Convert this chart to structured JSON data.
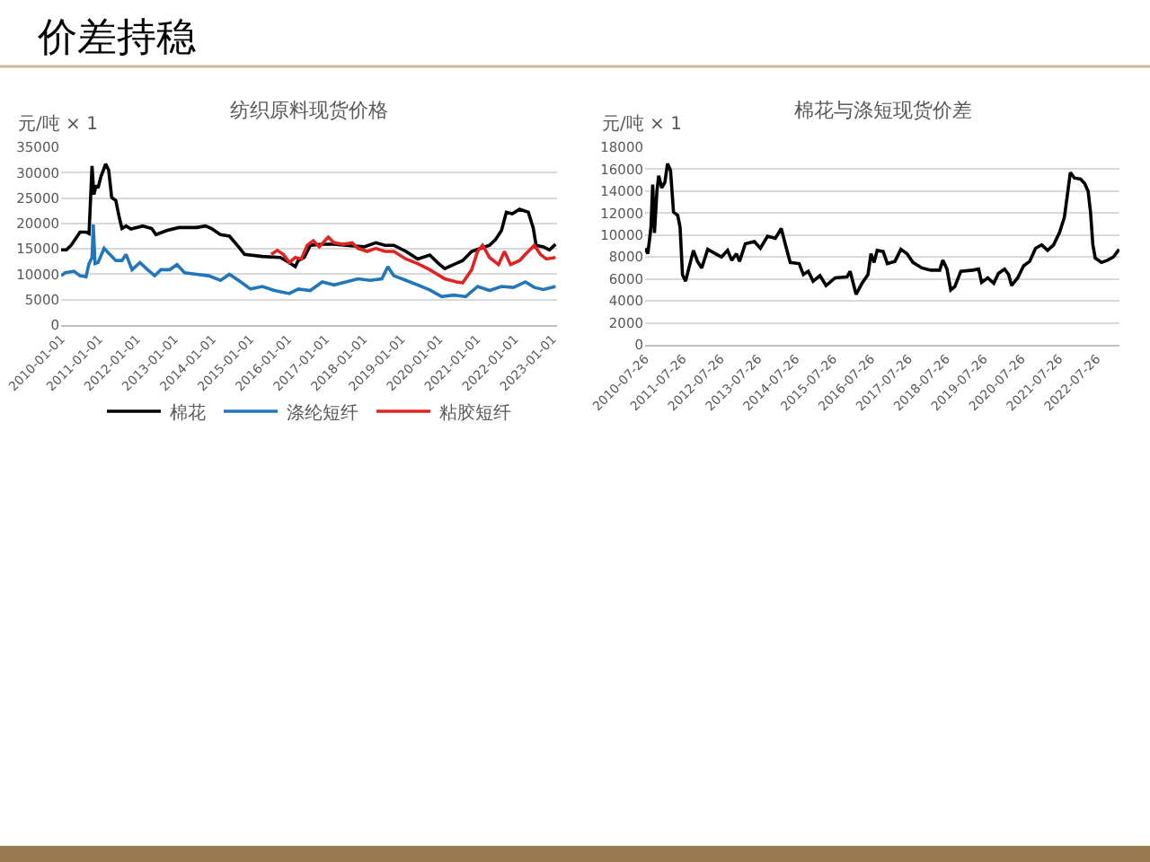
{
  "chart_data": [
    {
      "type": "line",
      "title": "纺织原料现货价格",
      "ylabel": "元/吨 × 1",
      "annotations": [
        "价差持稳"
      ],
      "xlim": [
        "2010-01-01",
        "2023-02-15"
      ],
      "xticks": [
        "2010-01-01",
        "2011-01-01",
        "2012-01-01",
        "2013-01-01",
        "2014-01-01",
        "2015-01-01",
        "2016-01-01",
        "2017-01-01",
        "2018-01-01",
        "2019-01-01",
        "2020-01-01",
        "2021-01-01",
        "2022-01-01",
        "2023-01-01"
      ],
      "ylim": [
        0,
        35000
      ],
      "yticks": [
        0,
        5000,
        10000,
        15000,
        20000,
        25000,
        30000,
        35000
      ],
      "grid": "y",
      "legend": "bottom",
      "series": [
        {
          "name": "棉花",
          "color": "#000000",
          "x": [
            "2010-01-01",
            "2010-02-22",
            "2010-04-08",
            "2010-07-03",
            "2010-08-30",
            "2010-09-28",
            "2010-10-27",
            "2010-11-14",
            "2010-12-07",
            "2010-12-24",
            "2011-01-22",
            "2011-03-08",
            "2011-04-06",
            "2011-05-05",
            "2011-06-14",
            "2011-07-13",
            "2011-08-12",
            "2011-09-21",
            "2011-11-07",
            "2012-03-01",
            "2012-05-26",
            "2012-07-06",
            "2012-10-18",
            "2013-02-12",
            "2013-08-03",
            "2013-10-28",
            "2013-12-25",
            "2014-03-21",
            "2014-06-16",
            "2014-09-12",
            "2014-11-09",
            "2015-04-29",
            "2015-10-21",
            "2016-01-16",
            "2016-03-13",
            "2016-04-11",
            "2016-06-08",
            "2016-08-05",
            "2016-11-29",
            "2017-03-23",
            "2017-07-16",
            "2018-01-07",
            "2018-05-01",
            "2018-07-27",
            "2018-10-22",
            "2019-02-16",
            "2019-06-10",
            "2019-10-04",
            "2019-12-29",
            "2020-02-26",
            "2020-05-22",
            "2020-08-17",
            "2020-11-12",
            "2021-02-08",
            "2021-05-04",
            "2021-06-30",
            "2021-08-27",
            "2021-10-13",
            "2021-12-10",
            "2022-02-18",
            "2022-05-14",
            "2022-06-29",
            "2022-07-28",
            "2022-10-06",
            "2022-12-03",
            "2023-02-01"
          ],
          "values": [
            14800,
            14800,
            15700,
            18300,
            18300,
            18000,
            31300,
            25700,
            27500,
            27000,
            29300,
            31700,
            30500,
            25100,
            24500,
            21600,
            19000,
            19500,
            18900,
            19500,
            19000,
            17800,
            18600,
            19200,
            19200,
            19500,
            19000,
            17800,
            17500,
            15400,
            13900,
            13500,
            13300,
            12300,
            11500,
            12700,
            13300,
            15700,
            15900,
            15900,
            15700,
            15400,
            16200,
            15700,
            15700,
            14500,
            13000,
            13800,
            12100,
            11100,
            11900,
            12700,
            14500,
            15100,
            15700,
            16800,
            18600,
            22200,
            21900,
            22800,
            22200,
            19200,
            15700,
            15400,
            14800,
            15900
          ]
        },
        {
          "name": "涤纶短纤",
          "color": "#2277bb",
          "x": [
            "2010-01-01",
            "2010-02-10",
            "2010-05-06",
            "2010-07-03",
            "2010-08-30",
            "2010-09-28",
            "2010-10-27",
            "2010-11-08",
            "2010-11-25",
            "2010-12-24",
            "2011-02-21",
            "2011-04-17",
            "2011-06-14",
            "2011-08-12",
            "2011-09-21",
            "2011-11-18",
            "2012-02-02",
            "2012-04-16",
            "2012-06-25",
            "2012-08-22",
            "2012-11-17",
            "2013-01-25",
            "2013-04-09",
            "2013-08-03",
            "2013-11-27",
            "2014-03-21",
            "2014-06-16",
            "2014-09-12",
            "2015-01-06",
            "2015-04-29",
            "2015-08-24",
            "2016-01-16",
            "2016-04-11",
            "2016-08-05",
            "2016-11-29",
            "2017-03-23",
            "2017-07-16",
            "2017-11-10",
            "2018-03-05",
            "2018-06-28",
            "2018-08-25",
            "2018-10-22",
            "2019-02-16",
            "2019-06-10",
            "2019-10-04",
            "2020-01-28",
            "2020-05-22",
            "2020-09-15",
            "2021-01-09",
            "2021-05-04",
            "2021-08-27",
            "2021-12-21",
            "2022-04-15",
            "2022-07-11",
            "2022-10-06",
            "2023-02-01"
          ],
          "values": [
            9700,
            10300,
            10600,
            9700,
            9500,
            12100,
            13300,
            19800,
            12100,
            12300,
            15100,
            13900,
            12700,
            12700,
            13900,
            10900,
            12300,
            10900,
            9700,
            10900,
            10900,
            11900,
            10300,
            10000,
            9700,
            8800,
            10000,
            8800,
            7100,
            7600,
            6800,
            6200,
            7100,
            6800,
            8500,
            7900,
            8500,
            9100,
            8800,
            9100,
            11500,
            9700,
            8800,
            7900,
            6900,
            5600,
            5900,
            5600,
            7600,
            6800,
            7600,
            7400,
            8500,
            7400,
            7000,
            7600
          ]
        },
        {
          "name": "粘胶短纤",
          "color": "#e02424",
          "x": [
            "2015-07-25",
            "2015-09-22",
            "2015-11-19",
            "2016-01-16",
            "2016-03-13",
            "2016-05-10",
            "2016-07-07",
            "2016-09-04",
            "2016-10-31",
            "2017-01-26",
            "2017-03-23",
            "2017-06-18",
            "2017-09-14",
            "2017-11-10",
            "2018-02-06",
            "2018-05-01",
            "2018-07-27",
            "2018-10-22",
            "2019-02-16",
            "2019-06-10",
            "2019-10-04",
            "2020-02-26",
            "2020-06-20",
            "2020-08-17",
            "2020-11-12",
            "2021-01-09",
            "2021-02-25",
            "2021-05-04",
            "2021-07-29",
            "2021-09-25",
            "2021-11-23",
            "2022-02-18",
            "2022-04-15",
            "2022-07-11",
            "2022-09-07",
            "2022-11-04",
            "2023-02-01"
          ],
          "values": [
            13900,
            14700,
            13900,
            12300,
            13300,
            13000,
            15700,
            16600,
            15400,
            17300,
            16200,
            15900,
            16200,
            15100,
            14500,
            15100,
            14500,
            14500,
            13000,
            12100,
            10900,
            9100,
            8500,
            8300,
            10900,
            14500,
            15700,
            13300,
            11900,
            14500,
            11900,
            12700,
            13900,
            15700,
            13900,
            13000,
            13300
          ]
        }
      ]
    },
    {
      "type": "line",
      "title": "棉花与涤短现货价差",
      "ylabel": "元/吨 × 1",
      "xlim": [
        "2010-07-26",
        "2023-03-05"
      ],
      "xticks": [
        "2010-07-26",
        "2011-07-26",
        "2012-07-26",
        "2013-07-26",
        "2014-07-26",
        "2015-07-26",
        "2016-07-26",
        "2017-07-26",
        "2018-07-26",
        "2019-07-26",
        "2020-07-26",
        "2021-07-26",
        "2022-07-26"
      ],
      "ylim": [
        0,
        18000
      ],
      "yticks": [
        0,
        2000,
        4000,
        6000,
        8000,
        10000,
        12000,
        14000,
        16000,
        18000
      ],
      "grid": "y",
      "series": [
        {
          "color": "#000000",
          "x": [
            "2010-07-26",
            "2010-08-22",
            "2010-09-21",
            "2010-10-08",
            "2010-10-25",
            "2010-11-18",
            "2010-12-05",
            "2011-01-04",
            "2011-02-03",
            "2011-03-01",
            "2011-03-30",
            "2011-04-28",
            "2011-06-08",
            "2011-07-01",
            "2011-07-24",
            "2011-08-23",
            "2011-09-22",
            "2011-11-07",
            "2011-12-17",
            "2012-01-27",
            "2012-03-25",
            "2012-06-09",
            "2012-08-06",
            "2012-10-04",
            "2012-11-13",
            "2012-12-29",
            "2013-01-28",
            "2013-03-25",
            "2013-06-21",
            "2013-08-18",
            "2013-10-27",
            "2014-01-11",
            "2014-03-09",
            "2014-04-19",
            "2014-06-04",
            "2014-08-30",
            "2014-10-10",
            "2014-11-26",
            "2015-01-12",
            "2015-03-20",
            "2015-05-18",
            "2015-08-14",
            "2015-12-08",
            "2016-01-07",
            "2016-03-04",
            "2016-05-01",
            "2016-06-28",
            "2016-07-27",
            "2016-08-26",
            "2016-09-25",
            "2016-11-22",
            "2017-01-02",
            "2017-03-16",
            "2017-05-13",
            "2017-07-11",
            "2017-09-08",
            "2017-12-04",
            "2018-02-28",
            "2018-05-25",
            "2018-06-24",
            "2018-08-04",
            "2018-09-09",
            "2018-10-19",
            "2018-12-16",
            "2019-04-10",
            "2019-06-07",
            "2019-07-06",
            "2019-09-04",
            "2019-11-01",
            "2019-12-16",
            "2020-02-14",
            "2020-03-24",
            "2020-04-22",
            "2020-06-20",
            "2020-08-17",
            "2020-10-14",
            "2020-12-11",
            "2021-02-08",
            "2021-04-06",
            "2021-06-03",
            "2021-07-30",
            "2021-09-16",
            "2021-10-09",
            "2021-11-13",
            "2021-12-23",
            "2022-02-21",
            "2022-04-01",
            "2022-05-05",
            "2022-05-28",
            "2022-06-20",
            "2022-07-13",
            "2022-09-11",
            "2022-11-08",
            "2023-01-05",
            "2023-03-02"
          ],
          "values": [
            8800,
            8300,
            10700,
            14600,
            10200,
            14000,
            15400,
            14300,
            14800,
            16500,
            15900,
            12100,
            11800,
            10700,
            6400,
            5800,
            6900,
            8600,
            7600,
            7000,
            8700,
            8300,
            8000,
            8600,
            7700,
            8300,
            7600,
            9200,
            9400,
            8800,
            9900,
            9700,
            10600,
            9100,
            7500,
            7400,
            6400,
            6700,
            5800,
            6300,
            5400,
            6100,
            6200,
            6700,
            4600,
            5600,
            6400,
            8300,
            7500,
            8600,
            8500,
            7400,
            7600,
            8700,
            8300,
            7500,
            7000,
            6800,
            6800,
            7700,
            6900,
            5000,
            5300,
            6700,
            6800,
            6900,
            5700,
            6100,
            5600,
            6500,
            6900,
            6400,
            5400,
            6100,
            7200,
            7600,
            8800,
            9100,
            8600,
            9100,
            10200,
            11600,
            13200,
            15700,
            15200,
            15100,
            14700,
            14000,
            12100,
            9100,
            7900,
            7500,
            7700,
            8000,
            8700
          ]
        }
      ]
    }
  ]
}
